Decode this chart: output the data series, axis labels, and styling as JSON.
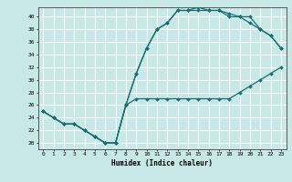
{
  "xlabel": "Humidex (Indice chaleur)",
  "background_color": "#c8e8e8",
  "grid_color": "#ffffff",
  "line_color": "#1a6e6e",
  "xlim": [
    -0.5,
    23.5
  ],
  "ylim": [
    19.0,
    41.5
  ],
  "yticks": [
    20,
    22,
    24,
    26,
    28,
    30,
    32,
    34,
    36,
    38,
    40
  ],
  "xticks": [
    0,
    1,
    2,
    3,
    4,
    5,
    6,
    7,
    8,
    9,
    10,
    11,
    12,
    13,
    14,
    15,
    16,
    17,
    18,
    19,
    20,
    21,
    22,
    23
  ],
  "hours": [
    0,
    1,
    2,
    3,
    4,
    5,
    6,
    7,
    8,
    9,
    10,
    11,
    12,
    13,
    14,
    15,
    16,
    17,
    18,
    19,
    20,
    21,
    22,
    23
  ],
  "line_bottom": [
    25,
    24,
    23,
    23,
    22,
    21,
    20,
    20,
    26,
    27,
    27,
    27,
    27,
    27,
    27,
    27,
    27,
    27,
    27,
    28,
    29,
    30,
    31,
    32
  ],
  "line_mid": [
    25,
    24,
    23,
    23,
    22,
    21,
    20,
    20,
    26,
    31,
    35,
    38,
    39,
    41,
    41,
    41,
    41,
    41,
    40,
    40,
    39,
    38,
    37,
    35
  ],
  "line_top": [
    25,
    24,
    23,
    23,
    22,
    21,
    20,
    20,
    26,
    31,
    35,
    38,
    39,
    41,
    41,
    41.5,
    41,
    41,
    40.5,
    40,
    40,
    38,
    37,
    35
  ]
}
